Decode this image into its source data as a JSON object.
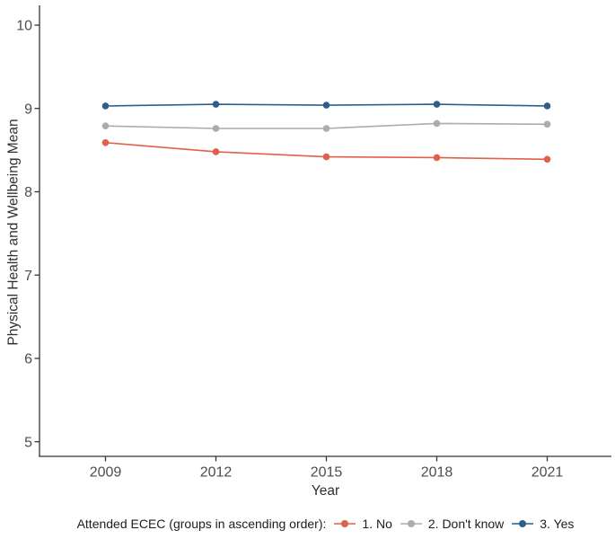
{
  "figure": {
    "y_axis_title": "Physical Health and Wellbeing Mean",
    "x_axis_title": "Year"
  },
  "legend": {
    "title": "Attended ECEC (groups in ascending order):"
  },
  "chart_data": {
    "type": "line",
    "x": [
      2009,
      2012,
      2015,
      2018,
      2021
    ],
    "x_tick_labels": [
      "2009",
      "2012",
      "2015",
      "2018",
      "2021"
    ],
    "yticks": [
      5,
      6,
      7,
      8,
      9,
      10
    ],
    "ylim": [
      4.8,
      10.2
    ],
    "xlabel": "Year",
    "ylabel": "Physical Health and Wellbeing Mean",
    "grid": false,
    "marker": "circle",
    "legend_position": "bottom",
    "legend_title": "Attended ECEC (groups in ascending order):",
    "axis_color": "#333333",
    "tick_label_color": "#4d4d4d",
    "series": [
      {
        "name": "1. No",
        "color": "#E0604A",
        "values": [
          8.59,
          8.48,
          8.42,
          8.41,
          8.39
        ]
      },
      {
        "name": "2. Don't know",
        "color": "#ACACAC",
        "values": [
          8.79,
          8.76,
          8.76,
          8.82,
          8.81
        ]
      },
      {
        "name": "3. Yes",
        "color": "#2E5F8C",
        "values": [
          9.03,
          9.05,
          9.04,
          9.05,
          9.03
        ]
      }
    ]
  }
}
